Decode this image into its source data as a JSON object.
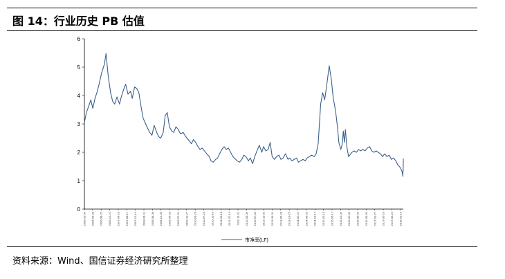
{
  "figure": {
    "title": "图 14：行业历史 PB 估值",
    "source": "资料来源：Wind、国信证券经济研究所整理"
  },
  "chart_data": {
    "type": "line",
    "title": "",
    "xlabel": "",
    "ylabel": "",
    "ylim": [
      0,
      6
    ],
    "yticks": [
      "0",
      "1",
      "2",
      "3",
      "4",
      "5",
      "6"
    ],
    "grid": false,
    "legend_position": "bottom-center",
    "x_range": [
      "2006-01-04",
      "2018-02-28"
    ],
    "xticks": [
      "2006-01-04",
      "2006-04-28",
      "2006-08-25",
      "2006-12-22",
      "2007-04-20",
      "2007-08-17",
      "2007-12-14",
      "2008-04-11",
      "2008-08-08",
      "2008-12-05",
      "2009-04-03",
      "2009-07-31",
      "2009-11-27",
      "2010-03-26",
      "2010-07-23",
      "2010-11-19",
      "2011-03-18",
      "2011-07-15",
      "2011-11-11",
      "2012-03-09",
      "2012-07-06",
      "2012-11-02",
      "2013-03-01",
      "2013-06-28",
      "2013-10-25",
      "2014-02-21",
      "2014-06-20",
      "2014-10-17",
      "2015-02-13",
      "2015-06-12",
      "2015-10-09",
      "2016-02-05",
      "2016-06-03",
      "2016-09-30",
      "2017-01-27",
      "2017-05-26",
      "2017-09-22",
      "2018-01-19"
    ],
    "series": [
      {
        "name": "市净率(LF)",
        "color": "#3b5f8a",
        "points": [
          [
            "2006-01-04",
            3.05
          ],
          [
            "2006-02-01",
            3.4
          ],
          [
            "2006-03-01",
            3.6
          ],
          [
            "2006-04-03",
            3.85
          ],
          [
            "2006-05-01",
            3.55
          ],
          [
            "2006-06-01",
            3.9
          ],
          [
            "2006-07-03",
            4.15
          ],
          [
            "2006-08-01",
            4.45
          ],
          [
            "2006-09-01",
            4.8
          ],
          [
            "2006-10-09",
            5.1
          ],
          [
            "2006-11-01",
            5.48
          ],
          [
            "2006-12-01",
            4.7
          ],
          [
            "2007-01-04",
            4.1
          ],
          [
            "2007-02-01",
            3.8
          ],
          [
            "2007-03-01",
            3.7
          ],
          [
            "2007-04-02",
            3.95
          ],
          [
            "2007-05-08",
            3.7
          ],
          [
            "2007-06-01",
            3.95
          ],
          [
            "2007-07-02",
            4.2
          ],
          [
            "2007-08-01",
            4.4
          ],
          [
            "2007-09-03",
            4.05
          ],
          [
            "2007-10-08",
            4.15
          ],
          [
            "2007-11-01",
            3.9
          ],
          [
            "2007-12-03",
            4.3
          ],
          [
            "2008-01-02",
            4.25
          ],
          [
            "2008-02-01",
            4.1
          ],
          [
            "2008-03-03",
            3.6
          ],
          [
            "2008-04-01",
            3.2
          ],
          [
            "2008-05-05",
            3.0
          ],
          [
            "2008-06-02",
            2.85
          ],
          [
            "2008-07-01",
            2.7
          ],
          [
            "2008-08-01",
            2.6
          ],
          [
            "2008-09-01",
            2.95
          ],
          [
            "2008-10-06",
            2.7
          ],
          [
            "2008-11-03",
            2.55
          ],
          [
            "2008-12-01",
            2.5
          ],
          [
            "2009-01-05",
            2.7
          ],
          [
            "2009-02-02",
            3.3
          ],
          [
            "2009-03-02",
            3.4
          ],
          [
            "2009-04-01",
            2.9
          ],
          [
            "2009-05-04",
            2.75
          ],
          [
            "2009-06-01",
            2.7
          ],
          [
            "2009-07-01",
            2.9
          ],
          [
            "2009-08-03",
            2.8
          ],
          [
            "2009-09-01",
            2.65
          ],
          [
            "2009-10-09",
            2.7
          ],
          [
            "2009-11-02",
            2.6
          ],
          [
            "2009-12-01",
            2.5
          ],
          [
            "2010-01-04",
            2.4
          ],
          [
            "2010-02-01",
            2.3
          ],
          [
            "2010-03-01",
            2.45
          ],
          [
            "2010-04-01",
            2.35
          ],
          [
            "2010-05-04",
            2.2
          ],
          [
            "2010-06-01",
            2.1
          ],
          [
            "2010-07-01",
            2.15
          ],
          [
            "2010-08-02",
            2.05
          ],
          [
            "2010-09-01",
            1.95
          ],
          [
            "2010-10-08",
            1.85
          ],
          [
            "2010-11-01",
            1.7
          ],
          [
            "2010-12-01",
            1.65
          ],
          [
            "2011-01-04",
            1.75
          ],
          [
            "2011-02-01",
            1.8
          ],
          [
            "2011-03-01",
            1.95
          ],
          [
            "2011-04-01",
            2.1
          ],
          [
            "2011-05-03",
            2.2
          ],
          [
            "2011-06-01",
            2.1
          ],
          [
            "2011-07-01",
            2.15
          ],
          [
            "2011-08-01",
            2.0
          ],
          [
            "2011-09-01",
            1.85
          ],
          [
            "2011-10-10",
            1.75
          ],
          [
            "2011-11-01",
            1.7
          ],
          [
            "2011-12-01",
            1.65
          ],
          [
            "2012-01-04",
            1.75
          ],
          [
            "2012-02-01",
            1.9
          ],
          [
            "2012-03-01",
            1.85
          ],
          [
            "2012-04-05",
            1.7
          ],
          [
            "2012-05-02",
            1.8
          ],
          [
            "2012-06-01",
            1.6
          ],
          [
            "2012-07-02",
            1.85
          ],
          [
            "2012-08-01",
            2.05
          ],
          [
            "2012-09-03",
            2.25
          ],
          [
            "2012-10-08",
            2.0
          ],
          [
            "2012-11-01",
            2.2
          ],
          [
            "2012-12-03",
            2.05
          ],
          [
            "2013-01-04",
            2.1
          ],
          [
            "2013-02-01",
            2.35
          ],
          [
            "2013-03-01",
            1.85
          ],
          [
            "2013-04-01",
            1.75
          ],
          [
            "2013-05-02",
            1.85
          ],
          [
            "2013-06-03",
            1.9
          ],
          [
            "2013-07-01",
            1.75
          ],
          [
            "2013-08-01",
            1.8
          ],
          [
            "2013-09-02",
            1.95
          ],
          [
            "2013-10-08",
            1.75
          ],
          [
            "2013-11-01",
            1.8
          ],
          [
            "2013-12-02",
            1.7
          ],
          [
            "2014-01-02",
            1.75
          ],
          [
            "2014-02-03",
            1.8
          ],
          [
            "2014-03-03",
            1.65
          ],
          [
            "2014-04-01",
            1.7
          ],
          [
            "2014-05-05",
            1.75
          ],
          [
            "2014-06-03",
            1.7
          ],
          [
            "2014-07-01",
            1.8
          ],
          [
            "2014-08-01",
            1.85
          ],
          [
            "2014-09-01",
            1.9
          ],
          [
            "2014-10-08",
            1.85
          ],
          [
            "2014-11-03",
            1.95
          ],
          [
            "2014-12-01",
            2.3
          ],
          [
            "2015-01-05",
            3.7
          ],
          [
            "2015-02-02",
            4.1
          ],
          [
            "2015-03-02",
            3.85
          ],
          [
            "2015-04-01",
            4.4
          ],
          [
            "2015-05-04",
            5.05
          ],
          [
            "2015-06-01",
            4.6
          ],
          [
            "2015-06-29",
            3.9
          ],
          [
            "2015-07-15",
            3.7
          ],
          [
            "2015-08-03",
            3.4
          ],
          [
            "2015-08-26",
            2.9
          ],
          [
            "2015-09-15",
            2.35
          ],
          [
            "2015-10-12",
            2.1
          ],
          [
            "2015-11-02",
            2.3
          ],
          [
            "2015-11-16",
            2.75
          ],
          [
            "2015-12-01",
            2.35
          ],
          [
            "2015-12-15",
            2.8
          ],
          [
            "2016-01-04",
            2.2
          ],
          [
            "2016-01-28",
            1.85
          ],
          [
            "2016-02-15",
            1.9
          ],
          [
            "2016-03-15",
            2.0
          ],
          [
            "2016-04-15",
            2.05
          ],
          [
            "2016-05-16",
            2.0
          ],
          [
            "2016-06-15",
            2.1
          ],
          [
            "2016-07-15",
            2.05
          ],
          [
            "2016-08-15",
            2.1
          ],
          [
            "2016-09-15",
            2.05
          ],
          [
            "2016-10-14",
            2.15
          ],
          [
            "2016-11-15",
            2.2
          ],
          [
            "2016-12-15",
            2.05
          ],
          [
            "2017-01-16",
            2.0
          ],
          [
            "2017-02-15",
            2.05
          ],
          [
            "2017-03-15",
            2.0
          ],
          [
            "2017-04-14",
            1.95
          ],
          [
            "2017-05-15",
            1.85
          ],
          [
            "2017-06-15",
            1.95
          ],
          [
            "2017-07-14",
            1.85
          ],
          [
            "2017-08-15",
            1.9
          ],
          [
            "2017-09-15",
            1.75
          ],
          [
            "2017-10-16",
            1.8
          ],
          [
            "2017-11-15",
            1.7
          ],
          [
            "2017-12-15",
            1.55
          ],
          [
            "2018-01-05",
            1.5
          ],
          [
            "2018-01-18",
            1.45
          ],
          [
            "2018-02-06",
            1.35
          ],
          [
            "2018-02-12",
            1.3
          ],
          [
            "2018-02-16",
            1.25
          ],
          [
            "2018-02-20",
            1.2
          ],
          [
            "2018-02-22",
            1.15
          ],
          [
            "2018-02-23",
            1.35
          ],
          [
            "2018-02-24",
            1.3
          ],
          [
            "2018-02-25",
            1.4
          ],
          [
            "2018-02-26",
            1.35
          ],
          [
            "2018-02-27",
            1.55
          ],
          [
            "2018-02-28",
            1.78
          ]
        ]
      }
    ]
  }
}
